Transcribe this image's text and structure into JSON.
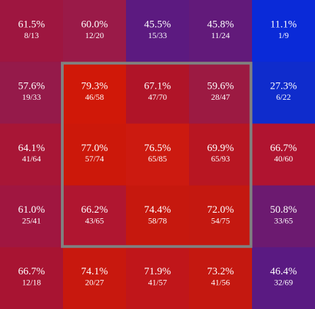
{
  "chart_data": {
    "type": "heatmap",
    "values": [
      [
        61.5,
        60.0,
        45.5,
        45.8,
        11.1
      ],
      [
        57.6,
        79.3,
        67.1,
        59.6,
        27.3
      ],
      [
        64.1,
        77.0,
        76.5,
        69.9,
        66.7
      ],
      [
        61.0,
        66.2,
        74.4,
        72.0,
        50.8
      ],
      [
        66.7,
        74.1,
        71.9,
        73.2,
        46.4
      ]
    ],
    "value_labels": [
      [
        "61.5%",
        "60.0%",
        "45.5%",
        "45.8%",
        "11.1%"
      ],
      [
        "57.6%",
        "79.3%",
        "67.1%",
        "59.6%",
        "27.3%"
      ],
      [
        "64.1%",
        "77.0%",
        "76.5%",
        "69.9%",
        "66.7%"
      ],
      [
        "61.0%",
        "66.2%",
        "74.4%",
        "72.0%",
        "50.8%"
      ],
      [
        "66.7%",
        "74.1%",
        "71.9%",
        "73.2%",
        "46.4%"
      ]
    ],
    "fractions": [
      [
        "8/13",
        "12/20",
        "15/33",
        "11/24",
        "1/9"
      ],
      [
        "19/33",
        "46/58",
        "47/70",
        "28/47",
        "6/22"
      ],
      [
        "41/64",
        "57/74",
        "65/85",
        "65/93",
        "40/60"
      ],
      [
        "25/41",
        "43/65",
        "58/78",
        "54/75",
        "33/65"
      ],
      [
        "12/18",
        "20/27",
        "41/57",
        "41/56",
        "32/69"
      ]
    ],
    "colors": [
      [
        "#9e1640",
        "#9a1a48",
        "#5c1a80",
        "#621a7a",
        "#0a2ad8"
      ],
      [
        "#951a4a",
        "#d01808",
        "#b01428",
        "#9c1a42",
        "#0f2ccc"
      ],
      [
        "#a81636",
        "#cc180a",
        "#cc1a10",
        "#b81622",
        "#b01430"
      ],
      [
        "#a01640",
        "#b01630",
        "#c6180e",
        "#c41810",
        "#6c1a70"
      ],
      [
        "#a81432",
        "#c8180e",
        "#c0161a",
        "#c41810",
        "#5a1a82"
      ]
    ],
    "zone_color": "#808080"
  }
}
